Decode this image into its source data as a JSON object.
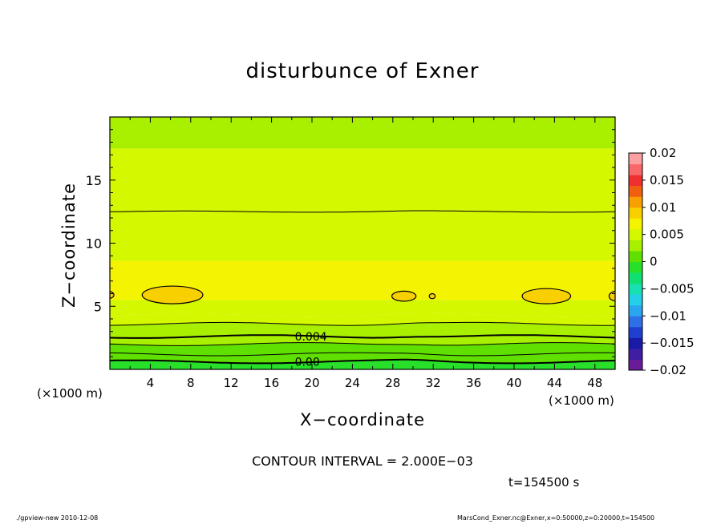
{
  "chart_data": {
    "type": "contour",
    "title": "disturbunce of Exner",
    "xlabel": "X−coordinate",
    "ylabel": "Z−coordinate",
    "x_unit_left": "(×1000 m)",
    "x_unit_right": "(×1000 m)",
    "xlim": [
      0,
      50
    ],
    "ylim": [
      0,
      20
    ],
    "x_ticks": [
      4,
      8,
      12,
      16,
      20,
      24,
      28,
      32,
      36,
      40,
      44,
      48
    ],
    "y_ticks": [
      5,
      10,
      15
    ],
    "contour_labels": [
      {
        "text": "0.004",
        "x": 18.3,
        "z": 2.6
      },
      {
        "text": "0.00",
        "x": 18.3,
        "z": 0.6
      }
    ],
    "bands": [
      {
        "z0": 0.0,
        "z1": 0.6,
        "value": -0.001
      },
      {
        "z0": 0.6,
        "z1": 1.2,
        "value": 0.0
      },
      {
        "z0": 1.2,
        "z1": 2.0,
        "value": 0.001
      },
      {
        "z0": 2.0,
        "z1": 2.6,
        "value": 0.002
      },
      {
        "z0": 2.6,
        "z1": 3.6,
        "value": 0.003
      },
      {
        "z0": 3.6,
        "z1": 4.3,
        "value": 0.004
      },
      {
        "z0": 4.3,
        "z1": 5.5,
        "value": 0.0055
      },
      {
        "z0": 5.5,
        "z1": 8.6,
        "value": 0.006
      },
      {
        "z0": 8.6,
        "z1": 12.5,
        "value": 0.0048
      },
      {
        "z0": 12.5,
        "z1": 17.5,
        "value": 0.004
      },
      {
        "z0": 17.5,
        "z1": 20.0,
        "value": 0.003
      }
    ],
    "contour_lines_z": [
      0.6,
      1.2,
      2.0,
      2.6,
      3.6,
      12.5
    ],
    "islands": [
      {
        "cx": 6.2,
        "cz": 5.9,
        "rx": 3.0,
        "rz": 0.7,
        "value": 0.008
      },
      {
        "cx": 29.1,
        "cz": 5.8,
        "rx": 1.2,
        "rz": 0.4,
        "value": 0.008
      },
      {
        "cx": 31.9,
        "cz": 5.8,
        "rx": 0.3,
        "rz": 0.2,
        "value": 0.008
      },
      {
        "cx": 43.2,
        "cz": 5.8,
        "rx": 2.4,
        "rz": 0.6,
        "value": 0.008
      },
      {
        "cx": 50.2,
        "cz": 5.8,
        "rx": 0.8,
        "rz": 0.4,
        "value": 0.008
      },
      {
        "cx": -0.2,
        "cz": 5.9,
        "rx": 0.6,
        "rz": 0.3,
        "value": 0.008
      }
    ],
    "colorbar": {
      "tick_labels": [
        "0.02",
        "0.015",
        "0.01",
        "0.005",
        "0",
        "−0.005",
        "−0.01",
        "−0.015",
        "−0.02"
      ],
      "levels": [
        -0.02,
        -0.018,
        -0.016,
        -0.014,
        -0.012,
        -0.01,
        -0.008,
        -0.006,
        -0.004,
        -0.002,
        0,
        0.002,
        0.004,
        0.006,
        0.008,
        0.01,
        0.012,
        0.014,
        0.016,
        0.018,
        0.02
      ],
      "colors": [
        "#6a1b9a",
        "#3f1ea3",
        "#1a1aa8",
        "#1f3fd0",
        "#2f6fe8",
        "#2aa6f0",
        "#22d0e8",
        "#18e0b0",
        "#10e070",
        "#28e02a",
        "#60e000",
        "#a8f000",
        "#d4f800",
        "#f4f400",
        "#f8d000",
        "#f8a000",
        "#f06010",
        "#f03030",
        "#f86868",
        "#faa0a0"
      ]
    }
  },
  "contour_interval": "CONTOUR INTERVAL = 2.000E−03",
  "time_label": "t=154500 s",
  "footer_left": "./gpview-new   2010-12-08",
  "footer_right": "MarsCond_Exner.nc@Exner,x=0:50000,z=0:20000,t=154500"
}
